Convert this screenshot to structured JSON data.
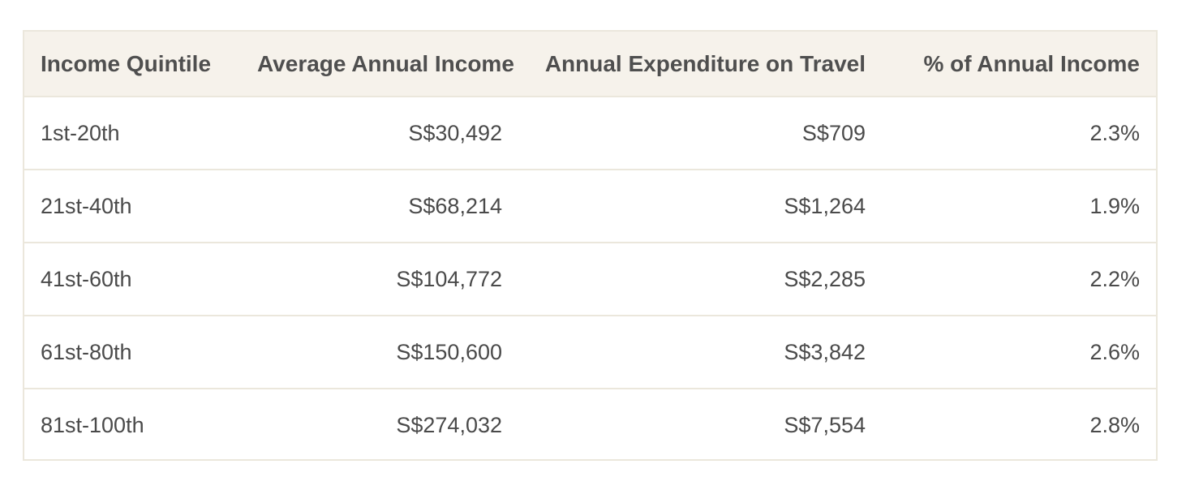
{
  "table": {
    "headers": [
      "Income Quintile",
      "Average Annual Income",
      "Annual Expenditure on Travel",
      "% of Annual Income"
    ],
    "rows": [
      [
        "1st-20th",
        "S$30,492",
        "S$709",
        "2.3%"
      ],
      [
        "21st-40th",
        "S$68,214",
        "S$1,264",
        "1.9%"
      ],
      [
        "41st-60th",
        "S$104,772",
        "S$2,285",
        "2.2%"
      ],
      [
        "61st-80th",
        "S$150,600",
        "S$3,842",
        "2.6%"
      ],
      [
        "81st-100th",
        "S$274,032",
        "S$7,554",
        "2.8%"
      ]
    ]
  },
  "colors": {
    "header_background": "#f6f2eb",
    "border": "#ebe7dc",
    "text": "#4a4a4a"
  }
}
